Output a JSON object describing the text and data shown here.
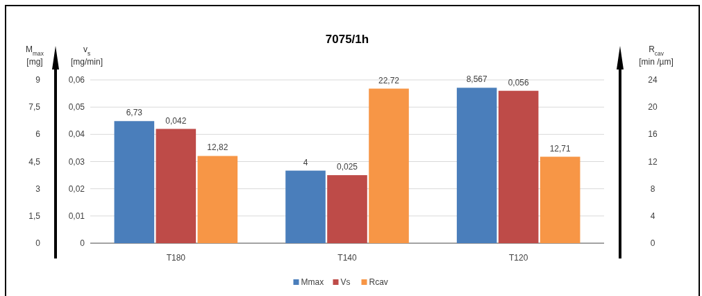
{
  "chart_data": {
    "type": "bar",
    "title": "7075/1h",
    "categories": [
      "T180",
      "T140",
      "T120"
    ],
    "series": [
      {
        "name": "Mmax",
        "color": "#4a7ebb",
        "values": [
          6.73,
          4,
          8.567
        ],
        "value_labels": [
          "6,73",
          "4",
          "8,567"
        ]
      },
      {
        "name": "Vs",
        "color": "#be4b48",
        "values": [
          0.042,
          0.025,
          0.056
        ],
        "value_labels": [
          "0,042",
          "0,025",
          "0,056"
        ],
        "axis": "y3"
      },
      {
        "name": "Rcav",
        "color": "#f79646",
        "values": [
          12.82,
          22.72,
          12.71
        ],
        "value_labels": [
          "12,82",
          "22,72",
          "12,71"
        ],
        "axis": "y2"
      }
    ],
    "ylabel": "M$_{max}$ [mg]",
    "y3label": "v$_{s}$ [mg/min]",
    "y2label": "R$_{cav}$ [min /µm]",
    "ylim": [
      0,
      9
    ],
    "yticks": [
      0,
      {
        "value": 1.5,
        "label": "1,5"
      },
      3,
      {
        "value": 4.5,
        "label": "4,5"
      },
      6,
      {
        "value": 7.5,
        "label": "7,5"
      },
      9
    ],
    "y3lim": [
      0,
      0.06
    ],
    "y3ticks": [
      0,
      {
        "value": 0.01,
        "label": "0,01"
      },
      {
        "value": 0.02,
        "label": "0,02"
      },
      {
        "value": 0.03,
        "label": "0,03"
      },
      {
        "value": 0.04,
        "label": "0,04"
      },
      {
        "value": 0.05,
        "label": "0,05"
      },
      {
        "value": 0.06,
        "label": "0,06"
      }
    ],
    "y2lim": [
      0,
      24
    ],
    "y2ticks": [
      0,
      4,
      8,
      12,
      16,
      20,
      24
    ],
    "grid": "y",
    "legend": "bottom"
  }
}
